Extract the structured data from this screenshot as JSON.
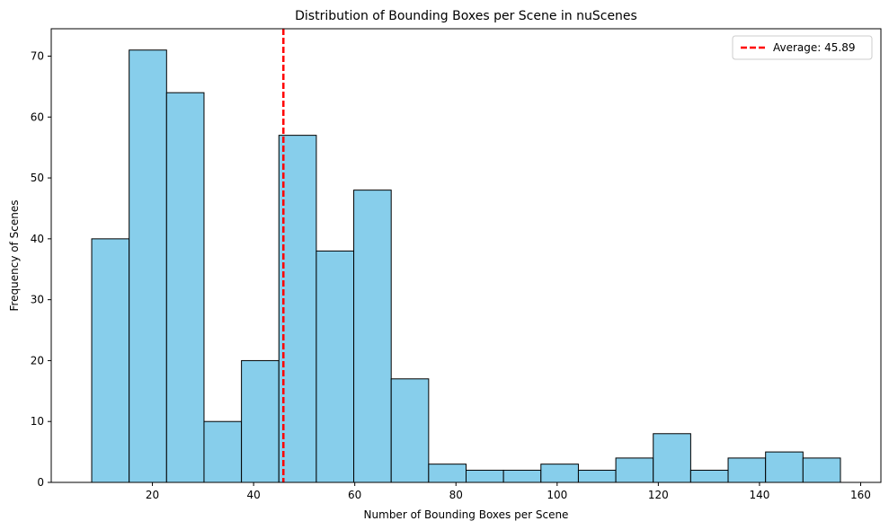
{
  "chart_data": {
    "type": "bar",
    "title": "Distribution of Bounding Boxes per Scene in nuScenes",
    "xlabel": "Number of Bounding Boxes per Scene",
    "ylabel": "Frequency of Scenes",
    "xlim": [
      0,
      164
    ],
    "ylim": [
      0,
      74.5
    ],
    "xticks": [
      20,
      40,
      60,
      80,
      100,
      120,
      140,
      160
    ],
    "yticks": [
      0,
      10,
      20,
      30,
      40,
      50,
      60,
      70
    ],
    "bins": [
      {
        "x0": 8.0,
        "x1": 15.4,
        "value": 40
      },
      {
        "x0": 15.4,
        "x1": 22.8,
        "value": 71
      },
      {
        "x0": 22.8,
        "x1": 30.2,
        "value": 64
      },
      {
        "x0": 30.2,
        "x1": 37.6,
        "value": 10
      },
      {
        "x0": 37.6,
        "x1": 45.0,
        "value": 20
      },
      {
        "x0": 45.0,
        "x1": 52.4,
        "value": 57
      },
      {
        "x0": 52.4,
        "x1": 59.8,
        "value": 38
      },
      {
        "x0": 59.8,
        "x1": 67.2,
        "value": 48
      },
      {
        "x0": 67.2,
        "x1": 74.6,
        "value": 17
      },
      {
        "x0": 74.6,
        "x1": 82.0,
        "value": 3
      },
      {
        "x0": 82.0,
        "x1": 89.4,
        "value": 2
      },
      {
        "x0": 89.4,
        "x1": 96.8,
        "value": 2
      },
      {
        "x0": 96.8,
        "x1": 104.2,
        "value": 3
      },
      {
        "x0": 104.2,
        "x1": 111.6,
        "value": 2
      },
      {
        "x0": 111.6,
        "x1": 119.0,
        "value": 4
      },
      {
        "x0": 119.0,
        "x1": 126.4,
        "value": 8
      },
      {
        "x0": 126.4,
        "x1": 133.8,
        "value": 2
      },
      {
        "x0": 133.8,
        "x1": 141.2,
        "value": 4
      },
      {
        "x0": 141.2,
        "x1": 148.6,
        "value": 5
      },
      {
        "x0": 148.6,
        "x1": 156.0,
        "value": 4
      }
    ],
    "average_line": {
      "value": 45.89,
      "label": "Average: 45.89",
      "color": "#ff0000",
      "style": "dashed"
    },
    "bar_color": "#87ceeb",
    "bar_edge_color": "#000000",
    "grid": false,
    "legend_position": "top-right"
  }
}
